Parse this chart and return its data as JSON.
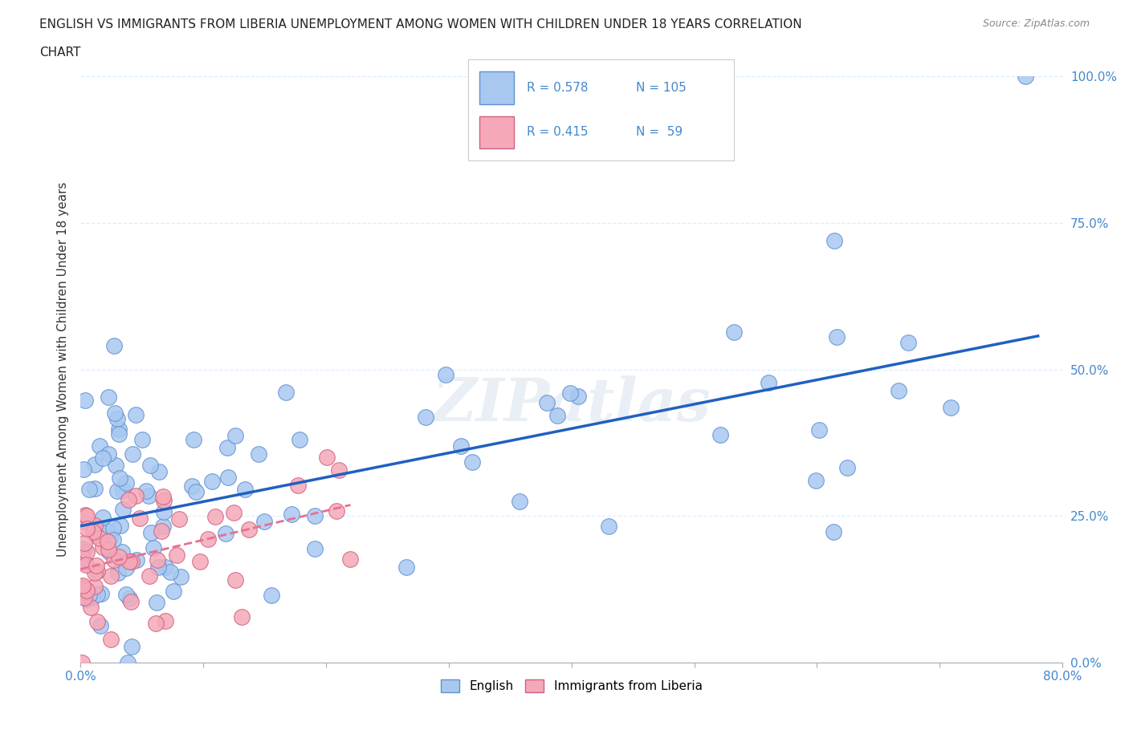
{
  "title_line1": "ENGLISH VS IMMIGRANTS FROM LIBERIA UNEMPLOYMENT AMONG WOMEN WITH CHILDREN UNDER 18 YEARS CORRELATION",
  "title_line2": "CHART",
  "source_text": "Source: ZipAtlas.com",
  "watermark": "ZIPatlas",
  "ylabel": "Unemployment Among Women with Children Under 18 years",
  "xlim": [
    0,
    0.8
  ],
  "ylim": [
    0,
    1.0
  ],
  "yticks": [
    0.0,
    0.25,
    0.5,
    0.75,
    1.0
  ],
  "yticklabels": [
    "0.0%",
    "25.0%",
    "50.0%",
    "75.0%",
    "100.0%"
  ],
  "english_color": "#a8c8f0",
  "liberia_color": "#f5a8b8",
  "english_line_color": "#2060c0",
  "liberia_line_color": "#e87090",
  "R_english": 0.578,
  "N_english": 105,
  "R_liberia": 0.415,
  "N_liberia": 59,
  "legend_label_english": "English",
  "legend_label_liberia": "Immigrants from Liberia",
  "background_color": "#ffffff",
  "grid_color": "#ddeeff"
}
